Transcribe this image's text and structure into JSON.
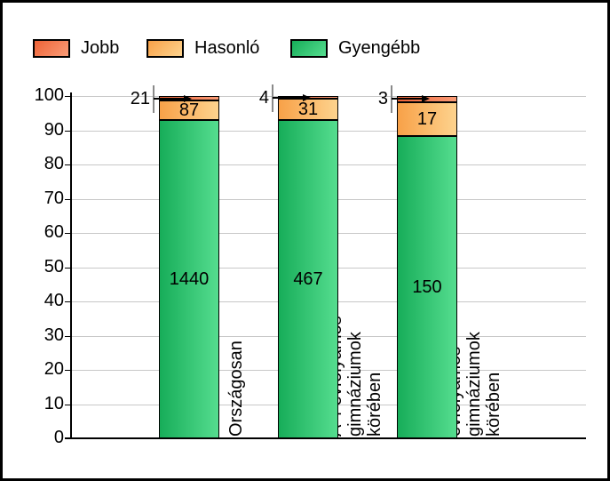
{
  "legend": {
    "items": [
      {
        "label": "Jobb"
      },
      {
        "label": "Hasonló"
      },
      {
        "label": "Gyengébb"
      }
    ]
  },
  "chart_data": {
    "type": "bar",
    "stacked": true,
    "normalized": "percent (segment heights are counts normalized to 100%)",
    "categories": [
      "Országosan",
      "A 4 évfolyamos gimnáziumok\nkörében",
      "Nagy 4 évfolyamos gimnáziumok\nkörében"
    ],
    "series": [
      {
        "name": "Jobb",
        "color": "#ee6337",
        "color_light": "#fa9c77",
        "values": [
          21,
          4,
          3
        ]
      },
      {
        "name": "Hasonló",
        "color": "#f8a148",
        "color_light": "#fdd38e",
        "values": [
          87,
          31,
          17
        ]
      },
      {
        "name": "Gyengébb",
        "color": "#17ad59",
        "color_light": "#55dd8f",
        "values": [
          1440,
          467,
          150
        ]
      }
    ],
    "ylim": [
      0,
      100
    ],
    "yticks": [
      0,
      10,
      20,
      30,
      40,
      50,
      60,
      70,
      80,
      90,
      100
    ],
    "grid": true,
    "legend_position": "top-left",
    "annotations": "Jobb counts (21, 4, 3) drawn left of each bar with a grey tick and a black arrow pointing into the thin top segment"
  },
  "colors": {
    "background": "#ffffff",
    "border": "#000000",
    "grid": "#c8c8c8",
    "axis": "#000000",
    "annotation_tick": "#8a8a8a",
    "text": "#000000"
  }
}
